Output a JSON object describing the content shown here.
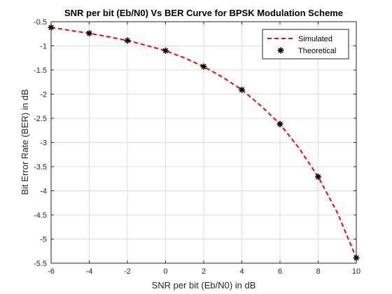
{
  "chart_data": {
    "type": "line",
    "title": "SNR per bit (Eb/N0) Vs BER Curve for BPSK Modulation Scheme",
    "xlabel": "SNR per bit (Eb/N0) in dB",
    "ylabel": "Bit Error Rate (BER) in dB",
    "xlim": [
      -6,
      10
    ],
    "ylim": [
      -5.5,
      -0.5
    ],
    "xticks": [
      -6,
      -4,
      -2,
      0,
      2,
      4,
      6,
      8,
      10
    ],
    "yticks": [
      -0.5,
      -1,
      -1.5,
      -2,
      -2.5,
      -3,
      -3.5,
      -4,
      -4.5,
      -5,
      -5.5
    ],
    "grid": true,
    "legend_position": "top-right",
    "series": [
      {
        "name": "Simulated",
        "style": "dashed-line",
        "color": "#ff0000",
        "x": [
          -6,
          -5,
          -4,
          -3,
          -2,
          -1,
          0,
          1,
          2,
          3,
          4,
          5,
          6,
          7,
          8,
          9,
          10
        ],
        "y": [
          -0.62,
          -0.68,
          -0.74,
          -0.81,
          -0.89,
          -0.99,
          -1.1,
          -1.25,
          -1.43,
          -1.65,
          -1.91,
          -2.24,
          -2.62,
          -3.12,
          -3.71,
          -4.45,
          -5.39
        ]
      },
      {
        "name": "Theoretical",
        "style": "asterisk-markers",
        "color": "#000000",
        "x": [
          -6,
          -4,
          -2,
          0,
          2,
          4,
          6,
          8,
          10
        ],
        "y": [
          -0.62,
          -0.74,
          -0.89,
          -1.1,
          -1.43,
          -1.91,
          -2.62,
          -3.71,
          -5.39
        ]
      }
    ]
  }
}
